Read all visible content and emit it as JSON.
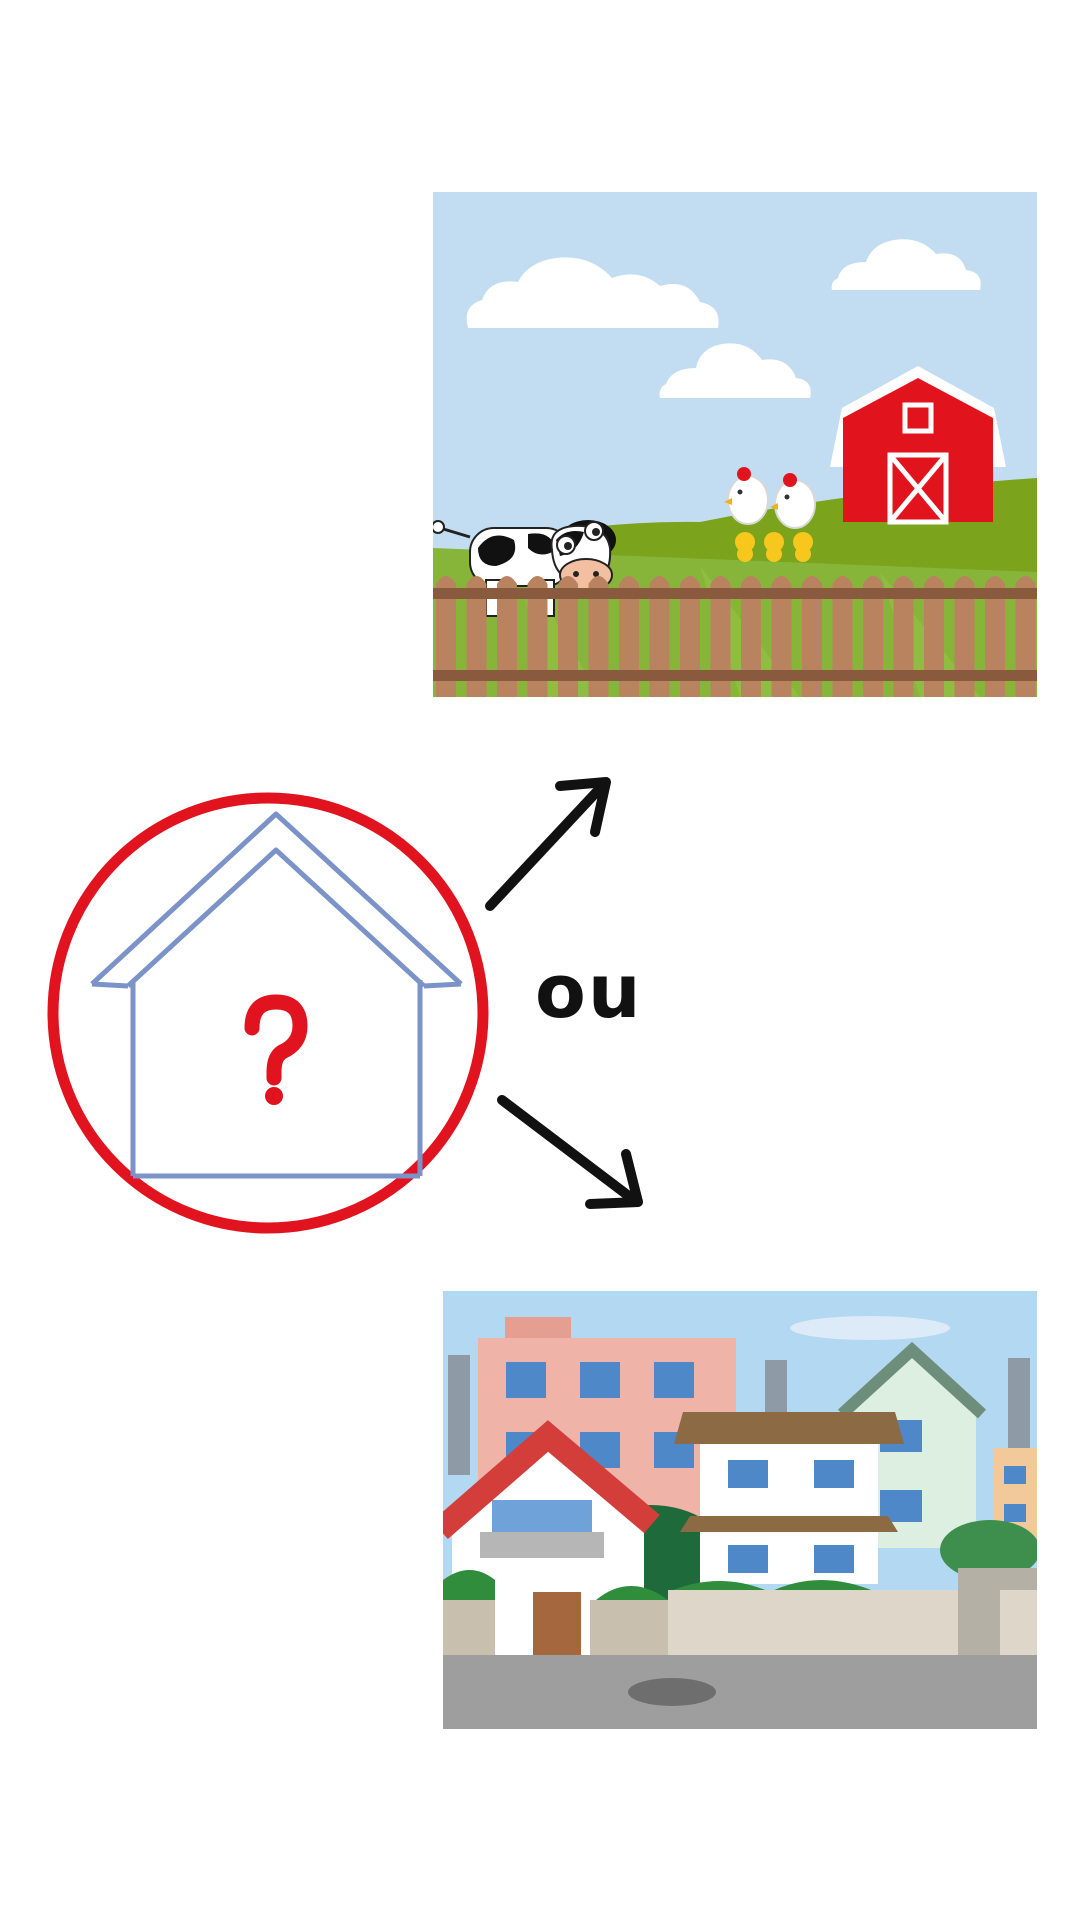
{
  "connector_text": "ou",
  "colors": {
    "circle": "#E0131E",
    "house_outline": "#7B93C9",
    "question_mark": "#E0131E",
    "arrows": "#111111",
    "farm_sky": "#C2DDF2",
    "farm_hill": "#7BA31C",
    "farm_grass": "#86B53A",
    "barn_red": "#E1141E",
    "fence": "#B98360",
    "city_sky": "#B3D8F2",
    "road": "#9E9E9E"
  },
  "icons": [
    "house-question-icon",
    "arrow-up-right-icon",
    "arrow-down-right-icon"
  ],
  "images": [
    "farm-scene",
    "city-scene"
  ]
}
